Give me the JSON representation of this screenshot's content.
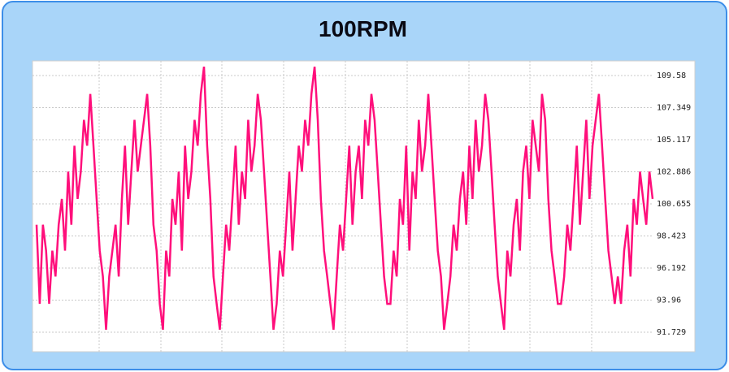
{
  "chart_data": {
    "type": "line",
    "title": "100RPM",
    "color": "#ff0f7b",
    "ylim": [
      90.37,
      110.6
    ],
    "yticks": [
      91.729,
      93.96,
      96.192,
      98.423,
      100.655,
      102.886,
      105.117,
      107.349,
      109.58
    ],
    "grid": true,
    "values": [
      99.2,
      93.7,
      99.2,
      97.4,
      93.7,
      97.4,
      95.6,
      99.2,
      101.0,
      97.4,
      102.9,
      99.2,
      104.7,
      101.0,
      102.9,
      106.5,
      104.7,
      108.3,
      104.7,
      101.0,
      97.4,
      95.6,
      91.9,
      95.6,
      97.4,
      99.2,
      95.6,
      101.0,
      104.7,
      99.2,
      102.9,
      106.5,
      102.9,
      104.7,
      106.5,
      108.3,
      104.7,
      99.2,
      97.4,
      93.7,
      91.9,
      97.4,
      95.6,
      101.0,
      99.2,
      102.9,
      97.4,
      104.7,
      101.0,
      102.9,
      106.5,
      104.7,
      108.3,
      110.2,
      104.7,
      101.0,
      95.6,
      93.7,
      91.9,
      95.6,
      99.2,
      97.4,
      101.0,
      104.7,
      99.2,
      102.9,
      101.0,
      106.5,
      102.9,
      104.7,
      108.3,
      106.5,
      102.9,
      99.2,
      95.6,
      91.9,
      93.7,
      97.4,
      95.6,
      99.2,
      102.9,
      97.4,
      101.0,
      104.7,
      102.9,
      106.5,
      104.7,
      108.3,
      110.2,
      106.5,
      101.0,
      97.4,
      95.6,
      93.7,
      91.9,
      95.6,
      99.2,
      97.4,
      101.0,
      104.7,
      99.2,
      102.9,
      104.7,
      101.0,
      106.5,
      104.7,
      108.3,
      106.5,
      102.9,
      99.2,
      95.6,
      93.7,
      93.7,
      97.4,
      95.6,
      101.0,
      99.2,
      104.7,
      97.4,
      102.9,
      101.0,
      106.5,
      102.9,
      104.7,
      108.3,
      104.7,
      101.0,
      97.4,
      95.6,
      91.9,
      93.7,
      95.6,
      99.2,
      97.4,
      101.0,
      102.9,
      99.2,
      104.7,
      101.0,
      106.5,
      102.9,
      104.7,
      108.3,
      106.5,
      102.9,
      99.2,
      95.6,
      93.7,
      91.9,
      97.4,
      95.6,
      99.2,
      101.0,
      97.4,
      102.9,
      104.7,
      101.0,
      106.5,
      104.7,
      102.9,
      108.3,
      106.5,
      101.0,
      97.4,
      95.6,
      93.7,
      93.7,
      95.6,
      99.2,
      97.4,
      101.0,
      104.7,
      99.2,
      102.9,
      106.5,
      101.0,
      104.7,
      106.5,
      108.3,
      104.7,
      101.0,
      97.4,
      95.6,
      93.7,
      95.6,
      93.7,
      97.4,
      99.2,
      95.6,
      101.0,
      99.2,
      102.9,
      101.0,
      99.2,
      102.9,
      101.0
    ]
  }
}
